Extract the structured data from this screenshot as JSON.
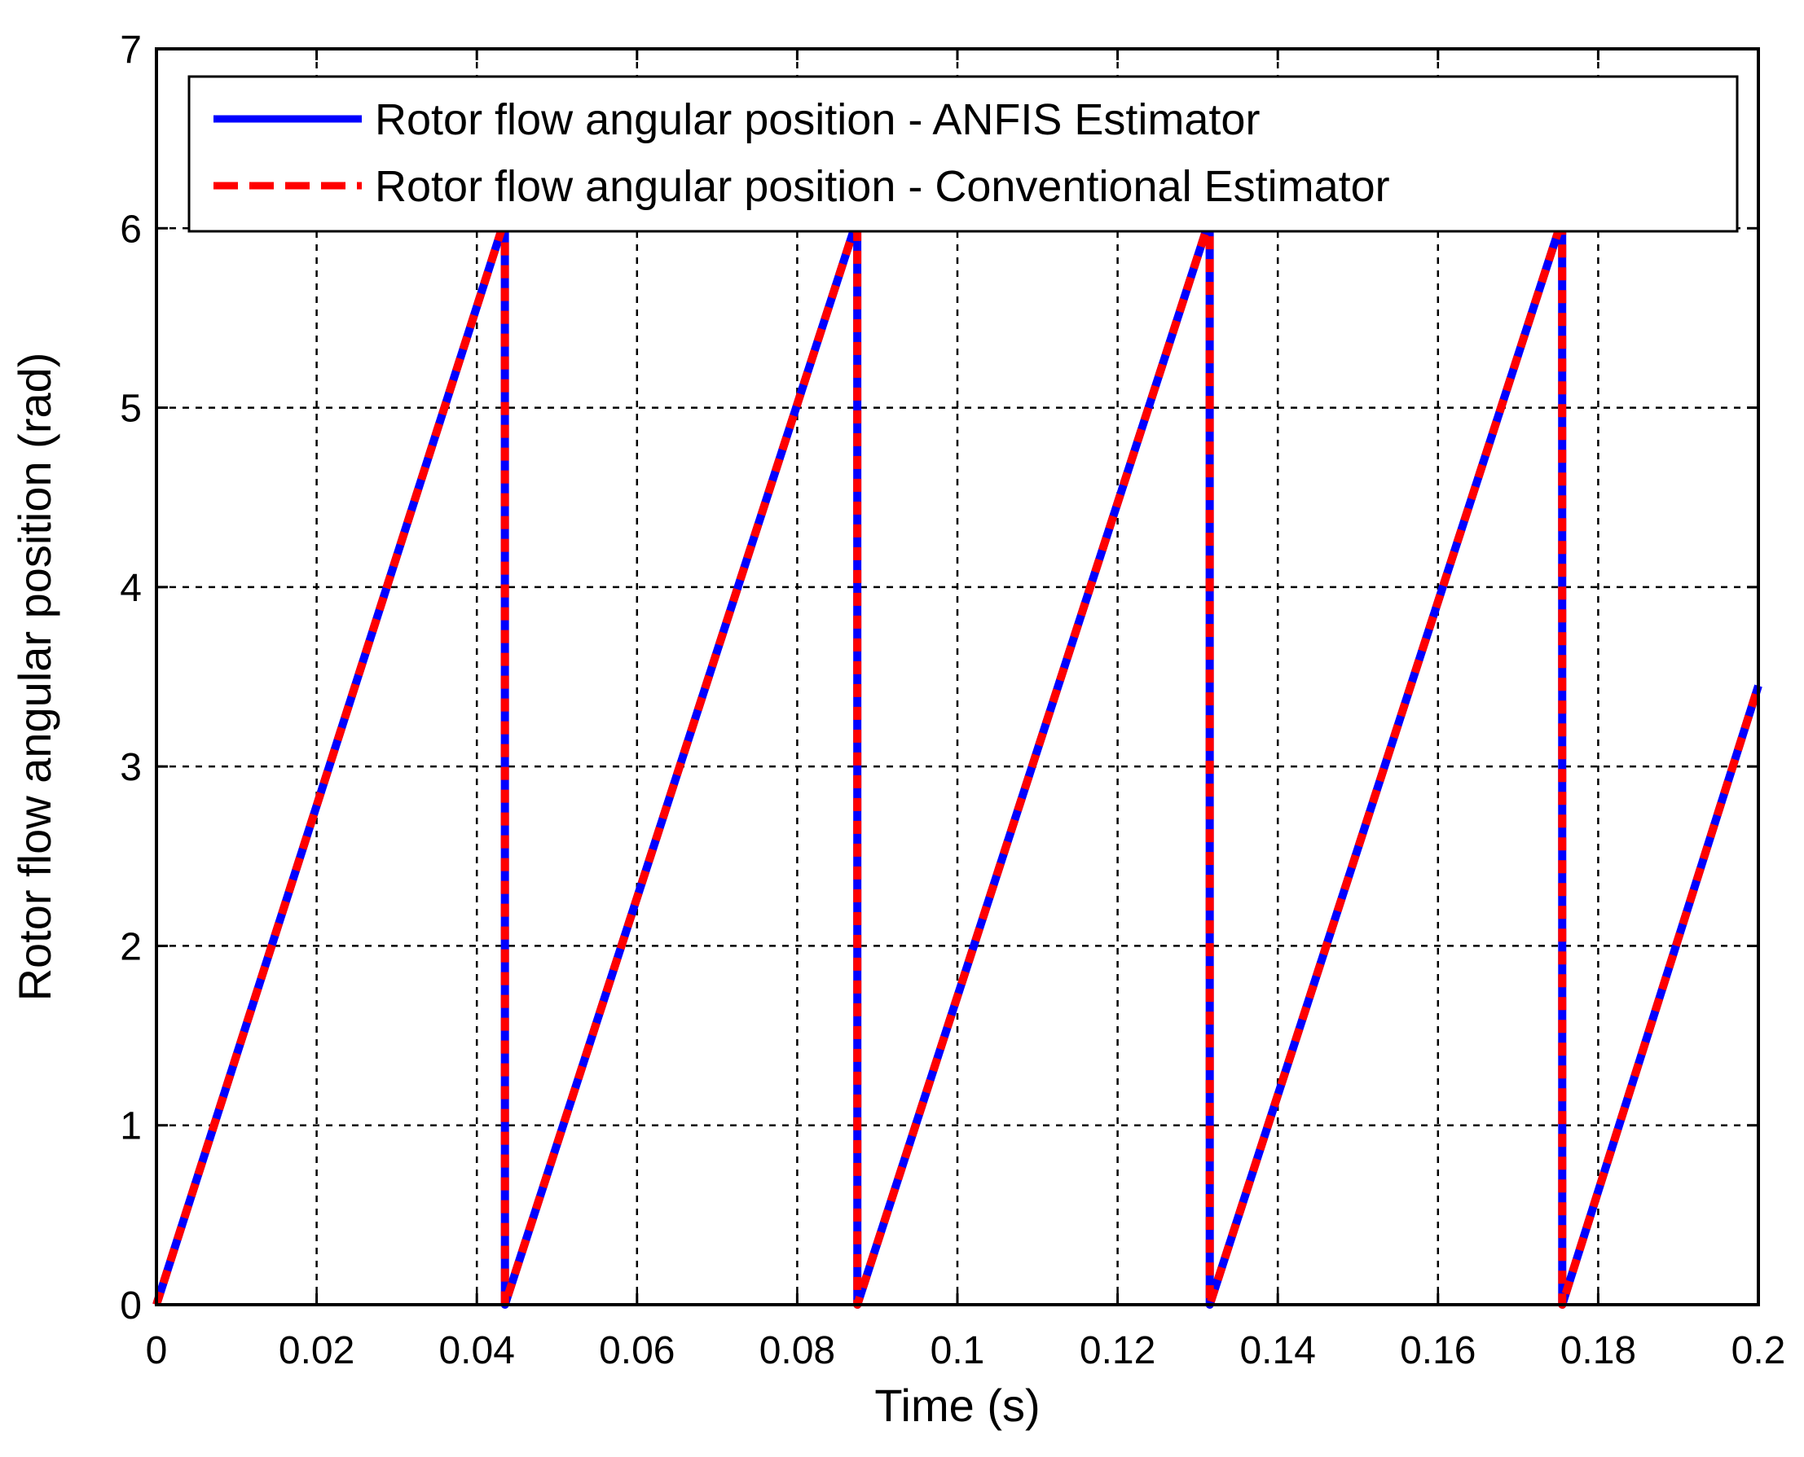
{
  "chart_data": {
    "type": "line",
    "title": "",
    "xlabel": "Time (s)",
    "ylabel": "Rotor flow angular position (rad)",
    "xlim": [
      0,
      0.2
    ],
    "ylim": [
      0,
      7
    ],
    "xticks": [
      0,
      0.02,
      0.04,
      0.06,
      0.08,
      0.1,
      0.12,
      0.14,
      0.16,
      0.18,
      0.2
    ],
    "xtick_labels": [
      "0",
      "0.02",
      "0.04",
      "0.06",
      "0.08",
      "0.1",
      "0.12",
      "0.14",
      "0.16",
      "0.18",
      "0.2"
    ],
    "yticks": [
      0,
      1,
      2,
      3,
      4,
      5,
      6,
      7
    ],
    "ytick_labels": [
      "0",
      "1",
      "2",
      "3",
      "4",
      "5",
      "6",
      "7"
    ],
    "grid": true,
    "legend_position": "top",
    "series": [
      {
        "name": "Rotor flow angular position - ANFIS Estimator",
        "color": "#0000ff",
        "style": "solid",
        "x": [
          0,
          0.0435,
          0.04351,
          0.0875,
          0.08751,
          0.1315,
          0.13151,
          0.1755,
          0.17551,
          0.2
        ],
        "y": [
          0,
          6.05,
          0,
          6.05,
          0,
          6.05,
          0,
          6.05,
          0,
          3.45
        ]
      },
      {
        "name": "Rotor flow angular position - Conventional Estimator",
        "color": "#ff0000",
        "style": "dashed",
        "x": [
          0,
          0.0435,
          0.04351,
          0.0875,
          0.08751,
          0.1315,
          0.13151,
          0.1755,
          0.17551,
          0.2
        ],
        "y": [
          0,
          6.05,
          0,
          6.05,
          0,
          6.05,
          0,
          6.05,
          0,
          3.45
        ]
      }
    ]
  }
}
